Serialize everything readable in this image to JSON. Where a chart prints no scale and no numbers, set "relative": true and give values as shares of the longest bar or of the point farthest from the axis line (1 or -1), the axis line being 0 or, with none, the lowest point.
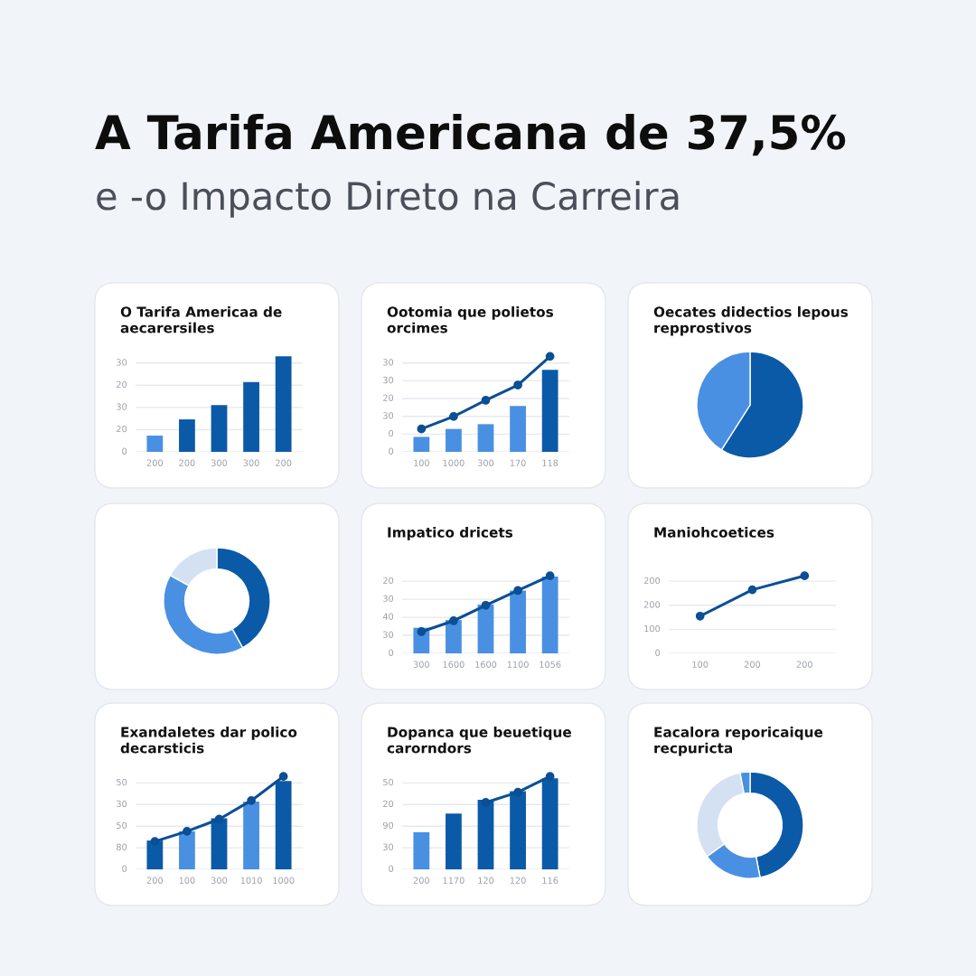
{
  "chart_data": [
    {
      "type": "other",
      "title": "A Tarifa Americana de 37,5%",
      "subtitle": "e -o Impacto Direto na Carreira"
    },
    {
      "type": "bar",
      "relative": true,
      "title": "O Tarifa Americaa de\naecarersiles",
      "categories": [
        "200",
        "200",
        "300",
        "300",
        "200"
      ],
      "series": [
        {
          "colors": [
            "#4a90e2",
            "#0b5aa8",
            "#0b5aa8",
            "#0b5aa8",
            "#0b5aa8"
          ],
          "values": [
            0.17,
            0.34,
            0.49,
            0.73,
            1
          ]
        }
      ],
      "annotations": [
        "0",
        "20",
        "30",
        "20",
        "30"
      ],
      "grid": "y"
    },
    {
      "type": "bar",
      "relative": true,
      "title": "Ootomia que polietos\norcimes",
      "categories": [
        "100",
        "1000",
        "300",
        "170",
        "118"
      ],
      "marker": "circle",
      "series": [
        {
          "colors": [
            "#4a90e2",
            "#4a90e2",
            "#4a90e2",
            "#4a90e2",
            "#0b5aa8"
          ],
          "values": [
            0.157,
            0.24,
            0.29,
            0.48,
            0.86
          ]
        },
        {
          "type": "line",
          "color": "#0b4f94",
          "values": [
            0.24,
            0.37,
            0.54,
            0.7,
            1
          ]
        }
      ],
      "annotations": [
        "0",
        "0",
        "30",
        "20",
        "30",
        "30"
      ],
      "grid": "y"
    },
    {
      "type": "pie",
      "title": "Oecates didectios lepous\nrepprostivos",
      "values": [
        59,
        41
      ],
      "colors": [
        "#0b5aa8",
        "#4a90e2"
      ]
    },
    {
      "type": "donut",
      "values": [
        42,
        41,
        17
      ],
      "colors": [
        "#0b5aa8",
        "#4a90e2",
        "#d3e1f3"
      ]
    },
    {
      "type": "bar",
      "relative": true,
      "title": "Impatico dricets",
      "categories": [
        "300",
        "1600",
        "1600",
        "1100",
        "1056"
      ],
      "marker": "circle",
      "series": [
        {
          "color": "#4a90e2",
          "values": [
            0.33,
            0.43,
            0.63,
            0.81,
            0.99
          ]
        },
        {
          "type": "line",
          "color": "#0b4f94",
          "values": [
            0.28,
            0.42,
            0.62,
            0.81,
            1
          ]
        }
      ],
      "annotations": [
        "0",
        "30",
        "40",
        "30",
        "20"
      ],
      "grid": "y"
    },
    {
      "type": "line",
      "relative": true,
      "title": "Maniohcoetices",
      "categories": [
        "100",
        "200",
        "200"
      ],
      "marker": "circle",
      "series": [
        {
          "color": "#0b4f94",
          "values": [
            0.48,
            0.82,
            1
          ]
        }
      ],
      "annotations": [
        "0",
        "100",
        "200",
        "200"
      ],
      "grid": "y"
    },
    {
      "type": "bar",
      "relative": true,
      "title": "Exandaletes dar polico\ndecarsticis",
      "categories": [
        "200",
        "100",
        "300",
        "1010",
        "1000"
      ],
      "marker": "circle",
      "series": [
        {
          "colors": [
            "#0b5aa8",
            "#4a90e2",
            "#0b5aa8",
            "#4a90e2",
            "#0b5aa8"
          ],
          "values": [
            0.31,
            0.41,
            0.55,
            0.73,
            0.95
          ]
        },
        {
          "type": "line",
          "color": "#0b4f94",
          "values": [
            0.3,
            0.41,
            0.54,
            0.74,
            1
          ]
        }
      ],
      "annotations": [
        "0",
        "80",
        "50",
        "30",
        "50"
      ],
      "grid": "y"
    },
    {
      "type": "bar",
      "relative": true,
      "title": "Dopanca que beuetique\ncarorndors",
      "categories": [
        "200",
        "1170",
        "120",
        "120",
        "116"
      ],
      "marker": "circle",
      "series": [
        {
          "colors": [
            "#4a90e2",
            "#0b5aa8",
            "#0b5aa8",
            "#0b5aa8",
            "#0b5aa8"
          ],
          "values": [
            0.4,
            0.6,
            0.75,
            0.84,
            0.98
          ]
        },
        {
          "type": "line",
          "color": "#0b4f94",
          "values": [
            null,
            null,
            0.72,
            0.83,
            1
          ]
        }
      ],
      "annotations": [
        "0",
        "30",
        "90",
        "20",
        "50"
      ],
      "grid": "y"
    },
    {
      "type": "donut",
      "title": "Eacalora reporicaique\nrecpuricta",
      "values": [
        47,
        18,
        32,
        3
      ],
      "colors": [
        "#0b5aa8",
        "#4a90e2",
        "#d3e1f3",
        "#4a90e2"
      ]
    }
  ]
}
